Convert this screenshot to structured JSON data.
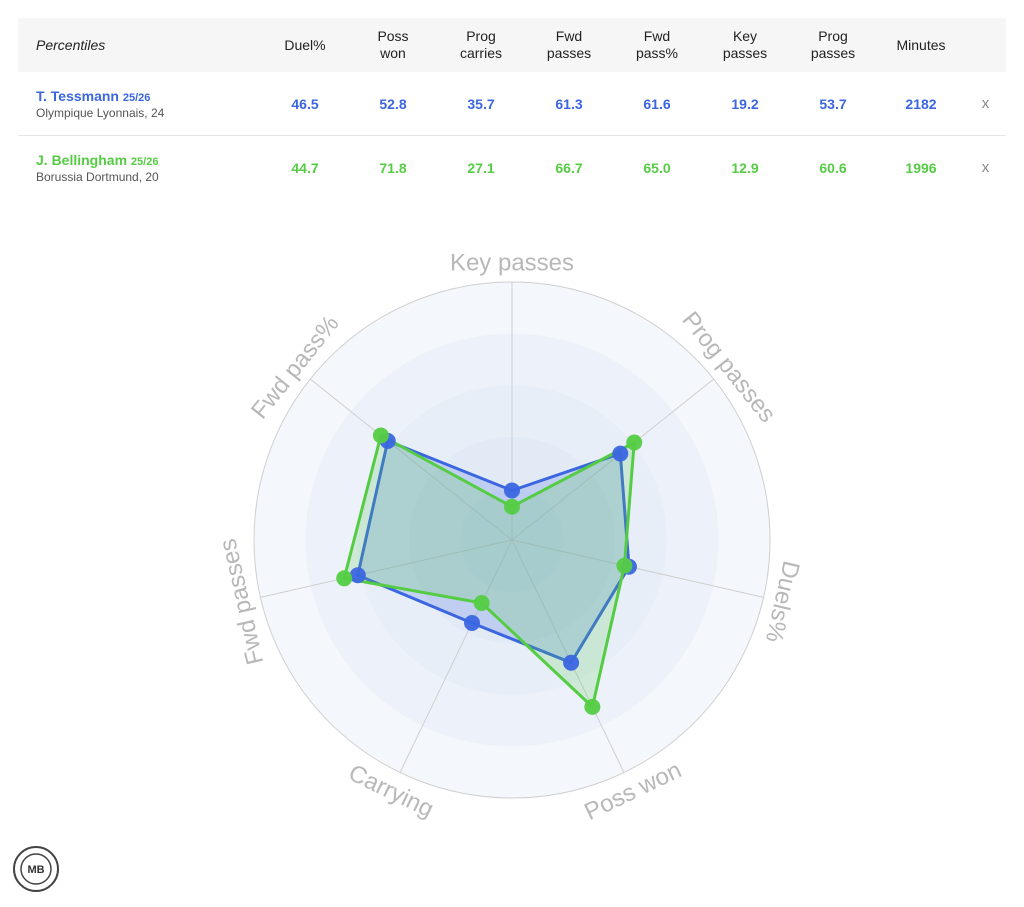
{
  "table": {
    "header": [
      "Percentiles",
      "Duel%",
      "Poss won",
      "Prog carries",
      "Fwd passes",
      "Fwd pass%",
      "Key passes",
      "Prog passes",
      "Minutes"
    ],
    "rows": [
      {
        "name": "T. Tessmann",
        "season": "25/26",
        "club": "Olympique Lyonnais, 24",
        "values": [
          "46.5",
          "52.8",
          "35.7",
          "61.3",
          "61.6",
          "19.2",
          "53.7",
          "2182"
        ],
        "remove": "x"
      },
      {
        "name": "J. Bellingham",
        "season": "25/26",
        "club": "Borussia Dortmund, 20",
        "values": [
          "44.7",
          "71.8",
          "27.1",
          "66.7",
          "65.0",
          "12.9",
          "60.6",
          "1996"
        ],
        "remove": "x"
      }
    ]
  },
  "chart_data": {
    "type": "radar",
    "categories": [
      "Key passes",
      "Prog passes",
      "Duels%",
      "Poss won",
      "Carrying",
      "Fwd passes",
      "Fwd pass%"
    ],
    "series": [
      {
        "color": "#3b66e0",
        "values": [
          19.2,
          53.7,
          46.5,
          52.8,
          35.7,
          61.3,
          61.6
        ]
      },
      {
        "color": "#55cc44",
        "values": [
          12.9,
          60.6,
          44.7,
          71.8,
          27.1,
          66.7,
          65.0
        ]
      }
    ],
    "ylim": [
      0,
      100
    ],
    "yticks": [
      20,
      40,
      60,
      80,
      100
    ]
  },
  "logo": "MB"
}
